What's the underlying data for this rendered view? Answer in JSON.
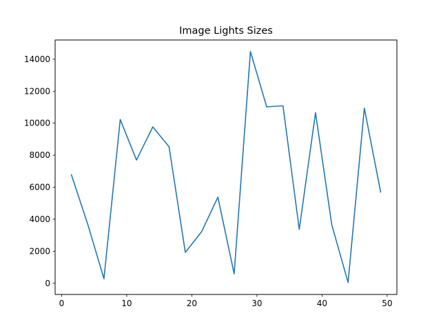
{
  "chart_data": {
    "type": "line",
    "title": "Image Lights Sizes",
    "xlabel": "",
    "ylabel": "",
    "xlim": [
      -1,
      51.5
    ],
    "ylim": [
      -700,
      15200
    ],
    "xticks": [
      0,
      10,
      20,
      30,
      40,
      50
    ],
    "yticks": [
      0,
      2000,
      4000,
      6000,
      8000,
      10000,
      12000,
      14000
    ],
    "grid": false,
    "legend": "none",
    "series": [
      {
        "color": "#1f77b4",
        "x": [
          1.5,
          4.0,
          6.5,
          9.0,
          11.5,
          14.0,
          16.5,
          19.0,
          21.5,
          24.0,
          26.5,
          29.0,
          31.5,
          34.0,
          36.5,
          39.0,
          41.5,
          44.0,
          46.5,
          49.0
        ],
        "y": [
          6780,
          3700,
          280,
          10230,
          7700,
          9770,
          8530,
          1930,
          3220,
          5380,
          590,
          14480,
          11020,
          11090,
          3370,
          10660,
          3650,
          50,
          10940,
          5700
        ]
      }
    ]
  }
}
